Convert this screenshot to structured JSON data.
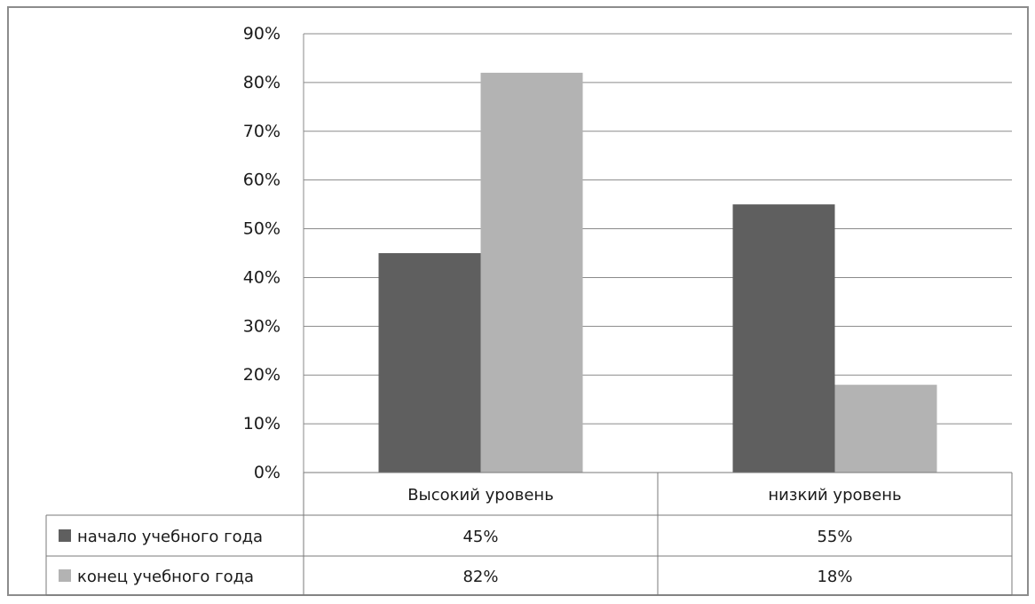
{
  "chart_data": {
    "type": "bar",
    "categories": [
      "Высокий уровень",
      "низкий уровень"
    ],
    "series": [
      {
        "name": "начало учебного года",
        "values": [
          45,
          55
        ],
        "labels": [
          "45%",
          "55%"
        ],
        "color": "#5f5f5f"
      },
      {
        "name": "конец учебного года",
        "values": [
          82,
          18
        ],
        "labels": [
          "82%",
          "18%"
        ],
        "color": "#b3b3b3"
      }
    ],
    "ylim": [
      0,
      90
    ],
    "yticks": [
      0,
      10,
      20,
      30,
      40,
      50,
      60,
      70,
      80,
      90
    ],
    "ytick_labels": [
      "0%",
      "10%",
      "20%",
      "30%",
      "40%",
      "50%",
      "60%",
      "70%",
      "80%",
      "90%"
    ],
    "grid": true,
    "legend": "data-table",
    "title": "",
    "xlabel": "",
    "ylabel": ""
  }
}
